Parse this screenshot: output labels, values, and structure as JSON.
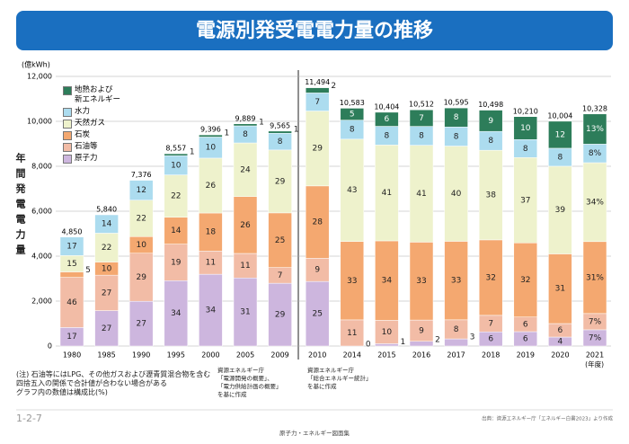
{
  "chart_data": {
    "type": "stacked_bar",
    "title": "電源別発受電電力量の推移",
    "y_unit": "(億kWh)",
    "ylabel": "年間発電電力量",
    "x_unit": "(年度)",
    "categories": [
      "1980",
      "1985",
      "1990",
      "1995",
      "2000",
      "2005",
      "2009",
      "2010",
      "2014",
      "2015",
      "2016",
      "2017",
      "2018",
      "2019",
      "2020",
      "2021"
    ],
    "ylim": [
      0,
      12000
    ],
    "yticks": [
      0,
      {
        "value": 2000,
        "label": "2,000"
      },
      {
        "value": 4000,
        "label": "4,000"
      },
      {
        "value": 6000,
        "label": "6,000"
      },
      {
        "value": 8000,
        "label": "8,000"
      },
      {
        "value": 10000,
        "label": "10,000"
      },
      {
        "value": 12000,
        "label": "12,000"
      }
    ],
    "series": [
      {
        "name": "原子力",
        "color": "#cdb6de",
        "values": [
          825,
          1577,
          1992,
          2909,
          3195,
          3030,
          2795,
          2874,
          0,
          104,
          210,
          318,
          630,
          640,
          400,
          723
        ],
        "value_labels": [
          "17",
          "27",
          "27",
          "34",
          "34",
          "31",
          "29",
          "25",
          "0",
          "1",
          "2",
          "3",
          "6",
          "6",
          "4",
          "7%"
        ]
      },
      {
        "name": "石油等",
        "color": "#f2bca6",
        "values": [
          2231,
          1577,
          2139,
          1626,
          1034,
          1090,
          700,
          1034,
          1164,
          1040,
          946,
          848,
          735,
          650,
          600,
          723
        ],
        "value_labels": [
          "46",
          "27",
          "29",
          "19",
          "11",
          "11",
          "7",
          "9",
          "11",
          "10",
          "9",
          "8",
          "7",
          "6",
          "6",
          "7%"
        ]
      },
      {
        "name": "石炭",
        "color": "#f4a870",
        "values": [
          243,
          584,
          738,
          1198,
          1691,
          2530,
          2430,
          3218,
          3492,
          3537,
          3469,
          3496,
          3359,
          3300,
          3101,
          3202
        ],
        "value_labels": [
          "5",
          "10",
          "10",
          "14",
          "18",
          "26",
          "25",
          "28",
          "33",
          "34",
          "33",
          "33",
          "32",
          "32",
          "31",
          "31%"
        ]
      },
      {
        "name": "天然ガス",
        "color": "#eef2cc",
        "values": [
          728,
          1285,
          1623,
          1883,
          2443,
          2390,
          2800,
          3333,
          4551,
          4266,
          4310,
          4238,
          3989,
          3800,
          3902,
          3512
        ],
        "value_labels": [
          "15",
          "22",
          "22",
          "22",
          "26",
          "24",
          "29",
          "29",
          "43",
          "41",
          "41",
          "40",
          "38",
          "37",
          "39",
          "34%"
        ]
      },
      {
        "name": "水力",
        "color": "#acdcef",
        "values": [
          823,
          817,
          884,
          856,
          940,
          760,
          745,
          805,
          847,
          832,
          841,
          848,
          840,
          800,
          800,
          826
        ],
        "value_labels": [
          "17",
          "14",
          "12",
          "10",
          "10",
          "8",
          "8",
          "7",
          "8",
          "8",
          "8",
          "8",
          "8",
          "8",
          "8",
          "8%"
        ]
      },
      {
        "name": "地熱および\n新エネルギー",
        "color": "#2d7d5a",
        "values": [
          null,
          null,
          null,
          85,
          93,
          89,
          95,
          230,
          529,
          625,
          736,
          847,
          945,
          1020,
          1201,
          1342
        ],
        "value_labels": [
          null,
          null,
          null,
          "1",
          "1",
          "1",
          "1",
          "2",
          "5",
          "6",
          "7",
          "8",
          "9",
          "10",
          "12",
          "13%"
        ]
      }
    ],
    "totals": {
      "values": [
        4850,
        5840,
        7376,
        8557,
        9396,
        9889,
        9565,
        11494,
        10583,
        10404,
        10512,
        10595,
        10498,
        10210,
        10004,
        10328
      ],
      "value_labels": [
        "4,850",
        "5,840",
        "7,376",
        "8,557",
        "9,396",
        "9,889",
        "9,565",
        "11,494",
        "10,583",
        "10,404",
        "10,512",
        "10,595",
        "10,498",
        "10,210",
        "10,004",
        "10,328"
      ]
    },
    "note": [
      "(注) 石油等にはLPG、その他ガスおよび瀝青質混合物を含む",
      "四捨五入の関係で合計値が合わない場合がある",
      "グラフ内の数値は構成比(%)"
    ],
    "source_left": [
      "資源エネルギー庁",
      "「電源開発の概要」、",
      "「電力供給計画の概要」",
      "を基に作成"
    ],
    "source_right": [
      "資源エネルギー庁",
      "「総合エネルギー統計」",
      "を基に作成"
    ],
    "page_id": "1-2-7",
    "footer": "原子力・エネルギー図面集",
    "citation": "出典：資源エネルギー庁「エネルギー白書2023」より作成"
  }
}
